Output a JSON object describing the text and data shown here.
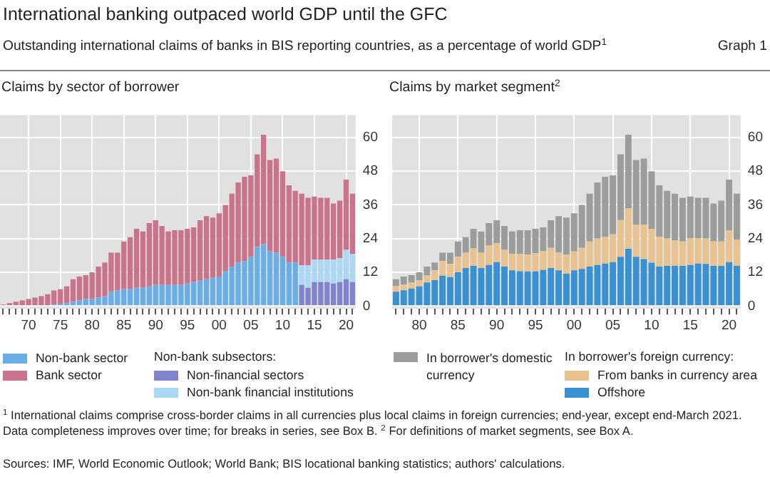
{
  "chart_data": [
    {
      "type": "bar",
      "title": "Claims by sector of borrower",
      "stacked": true,
      "grid": true,
      "legend": "bottom",
      "legend_title": "Non-bank subsectors:",
      "annotations": [
        "International banking outpaced world GDP until the GFC",
        "Outstanding international claims of banks in BIS reporting countries, as a percentage of world GDP$^{1}$",
        "Graph 1"
      ],
      "categories": [
        null,
        null,
        null,
        null,
        "70",
        null,
        null,
        null,
        null,
        "75",
        null,
        null,
        null,
        null,
        "80",
        null,
        null,
        null,
        null,
        "85",
        null,
        null,
        null,
        null,
        "90",
        null,
        null,
        null,
        null,
        "95",
        null,
        null,
        null,
        null,
        "00",
        null,
        null,
        null,
        null,
        "05",
        null,
        null,
        null,
        null,
        "10",
        null,
        null,
        null,
        null,
        "15",
        null,
        null,
        null,
        null,
        "20",
        null
      ],
      "ylim": [
        -1,
        68
      ],
      "yticks": [
        0,
        12,
        24,
        36,
        48,
        60
      ],
      "series": [
        {
          "name": "Non-bank sector",
          "color": "#6aaee6",
          "values": [
            0,
            0,
            0,
            0,
            0,
            0,
            0,
            null,
            0.5,
            0.8,
            1,
            1.5,
            2,
            2.5,
            2.5,
            3,
            3.5,
            5,
            5.5,
            6,
            6,
            6.5,
            6.5,
            7,
            7.5,
            7.5,
            7.5,
            7.5,
            7.5,
            8,
            8.5,
            9,
            9.5,
            10,
            10.5,
            12.5,
            14,
            15.5,
            16,
            17.5,
            21,
            22,
            19.5,
            19,
            17.5,
            15.5,
            15.5,
            null,
            null,
            null,
            null,
            null,
            null,
            null,
            null,
            null
          ]
        },
        {
          "name": "Non-financial sectors",
          "color": "#7f84cc",
          "values": [
            null,
            null,
            null,
            null,
            null,
            null,
            null,
            null,
            null,
            null,
            null,
            null,
            null,
            null,
            null,
            null,
            null,
            null,
            null,
            null,
            null,
            null,
            null,
            null,
            null,
            null,
            null,
            null,
            null,
            null,
            null,
            null,
            null,
            null,
            null,
            null,
            null,
            null,
            null,
            null,
            null,
            null,
            null,
            null,
            null,
            null,
            null,
            7.5,
            6.5,
            8.5,
            8.5,
            8.5,
            8,
            8.5,
            9.5,
            8.5
          ]
        },
        {
          "name": "Non-bank financial institutions",
          "color": "#aad8f5",
          "values": [
            null,
            null,
            null,
            null,
            null,
            null,
            null,
            null,
            null,
            null,
            null,
            null,
            null,
            null,
            null,
            null,
            null,
            null,
            null,
            null,
            null,
            null,
            null,
            null,
            null,
            null,
            null,
            null,
            null,
            null,
            null,
            null,
            null,
            null,
            null,
            null,
            null,
            null,
            null,
            null,
            null,
            null,
            null,
            null,
            null,
            null,
            null,
            7,
            8,
            8,
            8,
            8,
            8.5,
            8.5,
            10.5,
            10
          ]
        },
        {
          "name": "Bank sector",
          "color": "#c9748a",
          "values": [
            0.5,
            1,
            1.5,
            2,
            2.5,
            3,
            3.5,
            4.2,
            5,
            5.2,
            6,
            8,
            8.5,
            8.5,
            9.5,
            11,
            12,
            14,
            13.5,
            17,
            18.5,
            21,
            20,
            22.5,
            23,
            21,
            19,
            19.5,
            19.5,
            19.5,
            19.5,
            21.5,
            22.5,
            21.5,
            22.5,
            23.5,
            26,
            28.5,
            30,
            29,
            33,
            39,
            32.5,
            33.5,
            30.5,
            27.5,
            25.5,
            25.5,
            24,
            22.5,
            22,
            22,
            20,
            20.5,
            25,
            21.5
          ]
        }
      ]
    },
    {
      "type": "bar",
      "title": "Claims by market segment$^{2}$",
      "stacked": true,
      "grid": true,
      "legend": "bottom",
      "legend_title": "In borrower's foreign currency:",
      "annotations": [
        "$^{1}$  International claims comprise cross-border claims in all currencies plus local claims in foreign currencies; end-year, except end-March 2021. Data completeness improves over time; for breaks in series, see Box B.    $^{2}$  For definitions of market segments, see Box A.",
        "Sources: IMF, World Economic Outlook; World Bank; BIS locational banking statistics; authors' calculations."
      ],
      "categories": [
        null,
        null,
        null,
        "80",
        null,
        null,
        null,
        null,
        "85",
        null,
        null,
        null,
        null,
        "90",
        null,
        null,
        null,
        null,
        "95",
        null,
        null,
        null,
        null,
        "00",
        null,
        null,
        null,
        null,
        "05",
        null,
        null,
        null,
        null,
        "10",
        null,
        null,
        null,
        null,
        "15",
        null,
        null,
        null,
        null,
        "20",
        null
      ],
      "ylim": [
        -1,
        68
      ],
      "yticks": [
        0,
        12,
        24,
        36,
        48,
        60
      ],
      "series": [
        {
          "name": "Offshore",
          "color": "#3a91d1",
          "values": [
            5.1,
            5.6,
            6.2,
            7,
            8.4,
            9.2,
            10.8,
            10.3,
            12,
            13.5,
            14.3,
            13.5,
            14.6,
            15.6,
            14,
            12.7,
            12.4,
            12.3,
            12.3,
            12.8,
            13.5,
            12.7,
            11.5,
            12.7,
            13.2,
            14,
            14.6,
            15.1,
            15.6,
            17.5,
            20.4,
            17.5,
            16.7,
            15.4,
            14,
            14.3,
            14.3,
            14.3,
            14.6,
            15.1,
            15,
            14.3,
            14.3,
            15.6,
            14.3
          ]
        },
        {
          "name": "From banks in currency area",
          "color": "#e9c38f",
          "values": [
            2.1,
            2,
            2.1,
            2.2,
            2.6,
            3.5,
            5.2,
            4.7,
            5.5,
            5.5,
            6.2,
            5.5,
            6.9,
            6.7,
            6,
            5.9,
            6.2,
            6,
            6.5,
            6.7,
            7.2,
            6.3,
            6.8,
            6.7,
            7.5,
            9,
            9.4,
            9.6,
            9.9,
            13.1,
            14.3,
            11.5,
            12.3,
            12,
            10.7,
            9.7,
            9.1,
            8.7,
            9.6,
            9.1,
            9,
            8.7,
            8.7,
            11.4,
            9.3
          ]
        },
        {
          "name": "In borrower's domestic currency",
          "color": "#9a9d9a",
          "values": [
            2.3,
            2.9,
            2.7,
            2.8,
            3,
            2.8,
            3,
            4,
            5.5,
            5.5,
            7,
            7.5,
            8,
            8.2,
            8.5,
            7.9,
            8.4,
            8.7,
            8.7,
            8.5,
            9.8,
            13,
            13.2,
            13.6,
            15.3,
            17,
            20,
            21.3,
            21,
            23.4,
            26.3,
            23,
            23.5,
            20.6,
            18.3,
            17,
            16.6,
            15.5,
            14.8,
            14.3,
            14.5,
            13.5,
            14.5,
            18,
            16.4
          ]
        }
      ]
    }
  ]
}
